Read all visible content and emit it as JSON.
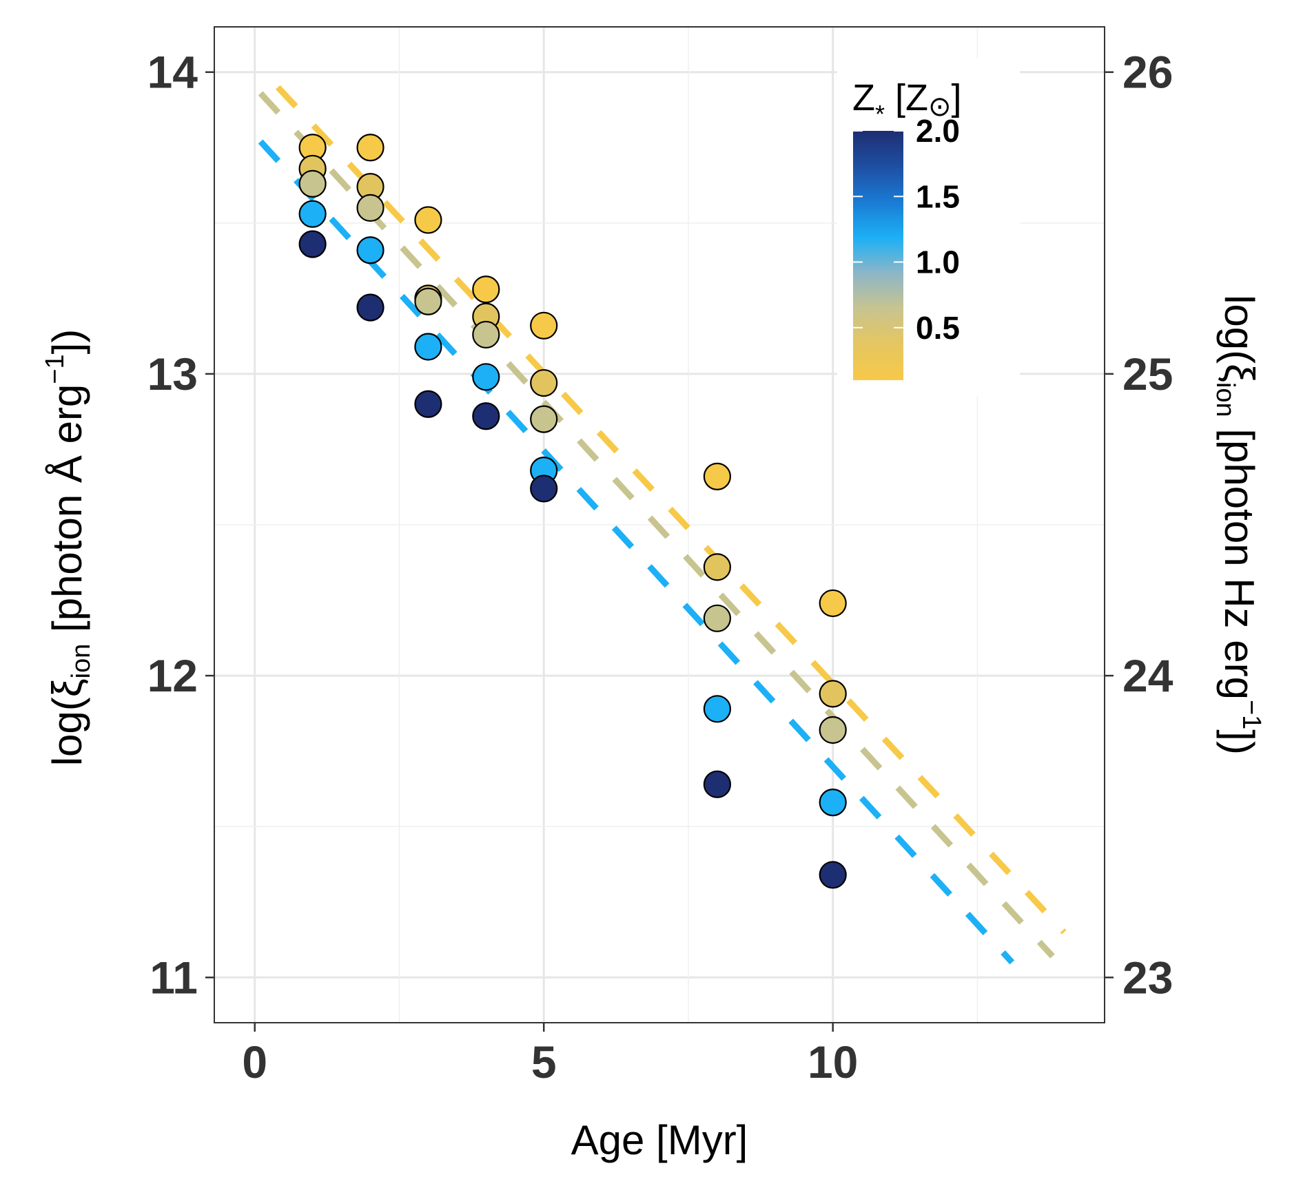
{
  "chart_data": {
    "type": "scatter",
    "xlabel": "Age [Myr]",
    "ylabel": {
      "prefix": "log(ξ",
      "sub": "ion",
      "middle": " [photon Å erg",
      "sup": "−1",
      "suffix": "])"
    },
    "ylabel_right": {
      "prefix": "log(ξ",
      "sub": "ion",
      "middle": " [photon Hz erg",
      "sup": "−1",
      "suffix": "])"
    },
    "xlim": [
      -0.7,
      14.7
    ],
    "ylim": [
      10.85,
      14.15
    ],
    "ylim_right": [
      22.85,
      26.15
    ],
    "x_ticks": [
      "0",
      "5",
      "10"
    ],
    "x_tick_values": [
      0,
      5,
      10
    ],
    "y_ticks": [
      "11",
      "12",
      "13",
      "14"
    ],
    "y_tick_values": [
      11,
      12,
      13,
      14
    ],
    "y_ticks_right": [
      "23",
      "24",
      "25",
      "26"
    ],
    "y_tick_values_right": [
      23,
      24,
      25,
      26
    ],
    "grid": true,
    "legend": {
      "title": {
        "prefix": "Z",
        "sub": "*",
        "middle": " [Z",
        "sun": "⊙",
        "suffix": "]"
      },
      "type": "colorbar",
      "placement": "top-right",
      "range": [
        0.1,
        2.0
      ],
      "ticks": [
        "0.5",
        "1.0",
        "1.5",
        "2.0"
      ],
      "tick_values": [
        0.5,
        1.0,
        1.5,
        2.0
      ],
      "gradient": [
        "#F7C948",
        "#E5C660",
        "#C8C48F",
        "#8DB6C7",
        "#1CB0F6",
        "#1A7BD4",
        "#1E4FA3",
        "#1E2E72"
      ]
    },
    "series": [
      {
        "name": "Z=0.1",
        "color": "#F7C948",
        "points": [
          [
            1,
            13.75
          ],
          [
            2,
            13.75
          ],
          [
            3,
            13.51
          ],
          [
            4,
            13.28
          ],
          [
            5,
            13.16
          ],
          [
            8,
            12.66
          ],
          [
            10,
            12.24
          ]
        ]
      },
      {
        "name": "Z=0.2",
        "color": "#E2C45E",
        "points": [
          [
            1,
            13.68
          ],
          [
            2,
            13.62
          ],
          [
            3,
            13.25
          ],
          [
            4,
            13.19
          ],
          [
            5,
            12.97
          ],
          [
            8,
            12.36
          ],
          [
            10,
            11.94
          ]
        ]
      },
      {
        "name": "Z=0.4",
        "color": "#C8C48F",
        "points": [
          [
            1,
            13.63
          ],
          [
            2,
            13.55
          ],
          [
            3,
            13.24
          ],
          [
            4,
            13.13
          ],
          [
            5,
            12.85
          ],
          [
            8,
            12.19
          ],
          [
            10,
            11.82
          ]
        ]
      },
      {
        "name": "Z=1.0",
        "color": "#1CB0F6",
        "points": [
          [
            1,
            13.53
          ],
          [
            2,
            13.41
          ],
          [
            3,
            13.09
          ],
          [
            4,
            12.99
          ],
          [
            5,
            12.68
          ],
          [
            8,
            11.89
          ],
          [
            10,
            11.58
          ]
        ]
      },
      {
        "name": "Z=2.0",
        "color": "#1E2E72",
        "points": [
          [
            1,
            13.43
          ],
          [
            2,
            13.22
          ],
          [
            3,
            12.9
          ],
          [
            4,
            12.86
          ],
          [
            5,
            12.62
          ],
          [
            8,
            11.64
          ],
          [
            10,
            11.34
          ]
        ]
      }
    ],
    "fit_lines": [
      {
        "name": "fit-yellow",
        "color": "#F7C948",
        "x": [
          0.4,
          14.0
        ],
        "y": [
          13.95,
          11.15
        ]
      },
      {
        "name": "fit-khaki",
        "color": "#C8C48F",
        "x": [
          0.1,
          13.8
        ],
        "y": [
          13.93,
          11.07
        ]
      },
      {
        "name": "fit-blue",
        "color": "#1CB0F6",
        "x": [
          0.1,
          13.1
        ],
        "y": [
          13.77,
          11.05
        ]
      }
    ]
  }
}
